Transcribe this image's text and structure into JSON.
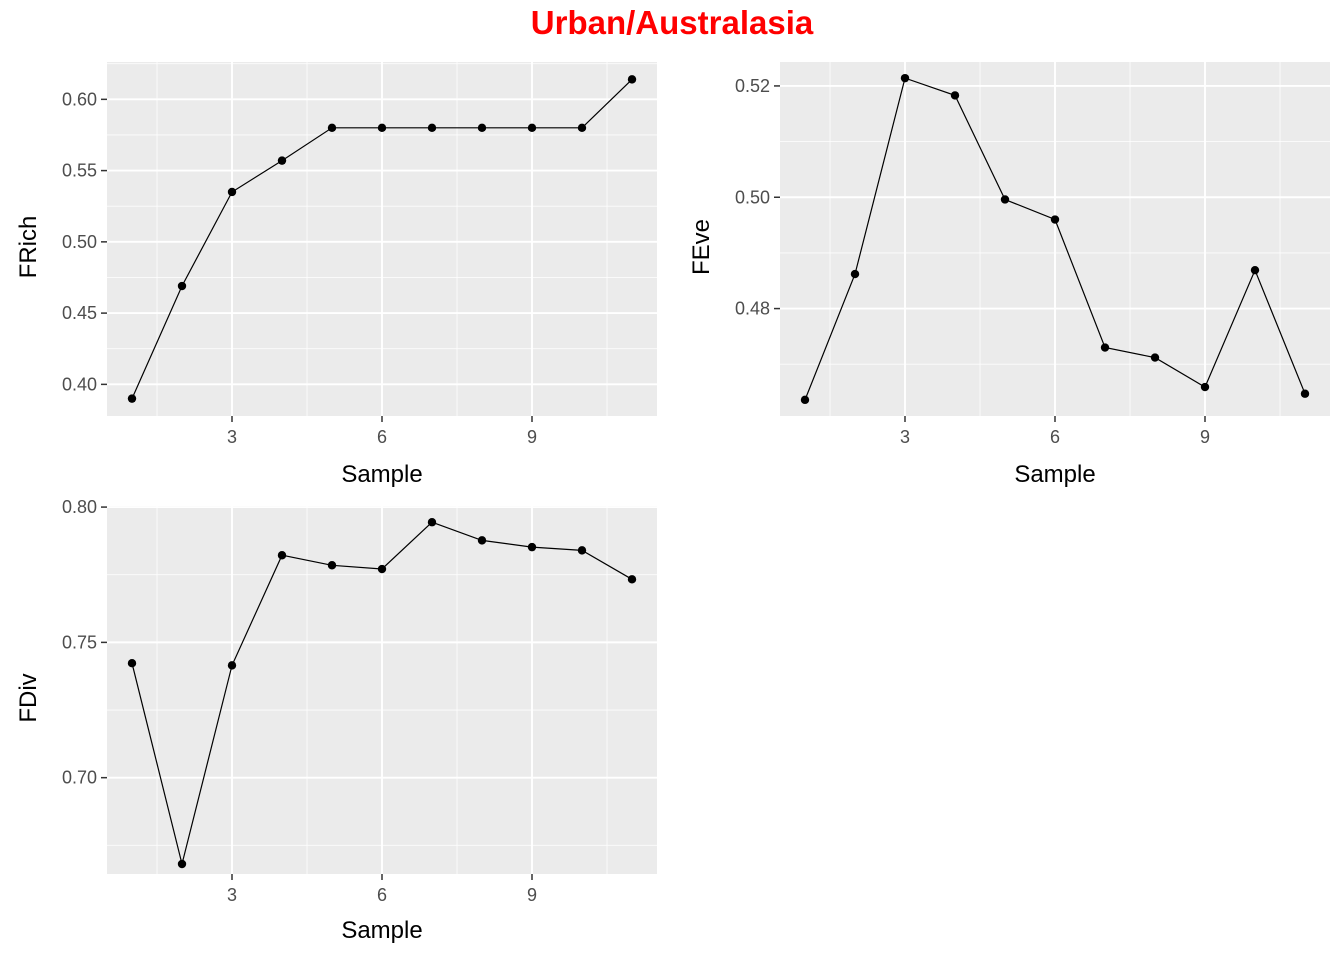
{
  "title": "Urban/Australasia",
  "colors": {
    "title": "#ff0000",
    "panel_background": "#ebebeb",
    "grid": "#ffffff",
    "series": "#000000",
    "tick_text": "#4d4d4d"
  },
  "chart_data": [
    {
      "type": "line",
      "xlabel": "Sample",
      "ylabel": "FRich",
      "x": [
        1,
        2,
        3,
        4,
        5,
        6,
        7,
        8,
        9,
        10,
        11
      ],
      "series": [
        {
          "values": [
            0.39,
            0.469,
            0.535,
            0.557,
            0.58,
            0.58,
            0.58,
            0.58,
            0.58,
            0.58,
            0.614
          ]
        }
      ],
      "xlim": [
        0.5,
        11.5
      ],
      "ylim": [
        0.3778,
        0.6262
      ],
      "xticks": [
        3,
        6,
        9
      ],
      "yticks": [
        0.4,
        0.45,
        0.5,
        0.55,
        0.6
      ],
      "ytick_labels": [
        "0.40",
        "0.45",
        "0.50",
        "0.55",
        "0.60"
      ],
      "grid": true,
      "markers": true
    },
    {
      "type": "line",
      "xlabel": "Sample",
      "ylabel": "FEve",
      "x": [
        1,
        2,
        3,
        4,
        5,
        6,
        7,
        8,
        9,
        10,
        11
      ],
      "series": [
        {
          "values": [
            0.4636,
            0.4862,
            0.5214,
            0.5183,
            0.4996,
            0.496,
            0.473,
            0.4712,
            0.4659,
            0.4869,
            0.4647
          ]
        }
      ],
      "xlim": [
        0.5,
        11.5
      ],
      "ylim": [
        0.4607,
        0.5243
      ],
      "xticks": [
        3,
        6,
        9
      ],
      "yticks": [
        0.48,
        0.5,
        0.52
      ],
      "ytick_labels": [
        "0.48",
        "0.50",
        "0.52"
      ],
      "grid": true,
      "markers": true
    },
    {
      "type": "line",
      "xlabel": "Sample",
      "ylabel": "FDiv",
      "x": [
        1,
        2,
        3,
        4,
        5,
        6,
        7,
        8,
        9,
        10,
        11
      ],
      "series": [
        {
          "values": [
            0.7423,
            0.6681,
            0.7415,
            0.7822,
            0.7785,
            0.7771,
            0.7944,
            0.7877,
            0.7852,
            0.784,
            0.7733
          ]
        }
      ],
      "xlim": [
        0.5,
        11.5
      ],
      "ylim": [
        0.6644,
        0.8004
      ],
      "xticks": [
        3,
        6,
        9
      ],
      "yticks": [
        0.7,
        0.75,
        0.8
      ],
      "ytick_labels": [
        "0.70",
        "0.75",
        "0.80"
      ],
      "grid": true,
      "markers": true
    }
  ]
}
